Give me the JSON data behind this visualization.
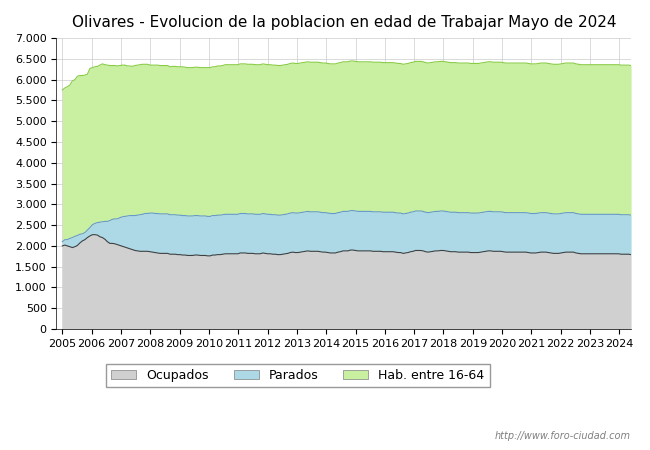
{
  "title": "Olivares - Evolucion de la poblacion en edad de Trabajar Mayo de 2024",
  "xlabel": "",
  "ylabel": "",
  "ylim": [
    0,
    7000
  ],
  "yticks": [
    0,
    500,
    1000,
    1500,
    2000,
    2500,
    3000,
    3500,
    4000,
    4500,
    5000,
    5500,
    6000,
    6500,
    7000
  ],
  "ytick_labels": [
    "0",
    "500",
    "1.000",
    "1.500",
    "2.000",
    "2.500",
    "3.000",
    "3.500",
    "4.000",
    "4.500",
    "5.000",
    "5.500",
    "6.000",
    "6.500",
    "7.000"
  ],
  "xlim": [
    2005,
    2024.4
  ],
  "xticks": [
    2005,
    2006,
    2007,
    2008,
    2009,
    2010,
    2011,
    2012,
    2013,
    2014,
    2015,
    2016,
    2017,
    2018,
    2019,
    2020,
    2021,
    2022,
    2023,
    2024
  ],
  "background_color": "#ffffff",
  "plot_bg_color": "#ffffff",
  "grid_color": "#cccccc",
  "url_text": "http://www.foro-ciudad.com",
  "legend_labels": [
    "Ocupados",
    "Parados",
    "Hab. entre 16-64"
  ],
  "color_ocupados": "#d0d0d0",
  "color_parados": "#add8e6",
  "color_hab1664": "#c8f0a0",
  "color_line_ocupados": "#404040",
  "color_line_parados": "#6699cc",
  "color_line_hab1664": "#88cc44",
  "hab1664": [
    5750,
    5800,
    5830,
    5870,
    5970,
    6000,
    6080,
    6100,
    6100,
    6110,
    6130,
    6270,
    6290,
    6310,
    6320,
    6350,
    6380,
    6360,
    6350,
    6340,
    6340,
    6340,
    6330,
    6340,
    6350,
    6350,
    6330,
    6330,
    6320,
    6340,
    6350,
    6360,
    6370,
    6370,
    6370,
    6350,
    6350,
    6350,
    6350,
    6340,
    6340,
    6340,
    6340,
    6310,
    6320,
    6320,
    6310,
    6310,
    6310,
    6300,
    6290,
    6290,
    6290,
    6300,
    6300,
    6290,
    6290,
    6290,
    6290,
    6290,
    6310,
    6310,
    6330,
    6330,
    6340,
    6360,
    6360,
    6360,
    6360,
    6360,
    6360,
    6380,
    6380,
    6380,
    6370,
    6370,
    6370,
    6360,
    6360,
    6360,
    6380,
    6370,
    6360,
    6360,
    6350,
    6350,
    6340,
    6340,
    6350,
    6360,
    6370,
    6390,
    6400,
    6390,
    6390,
    6400,
    6410,
    6420,
    6430,
    6420,
    6420,
    6420,
    6420,
    6410,
    6400,
    6400,
    6390,
    6380,
    6380,
    6380,
    6400,
    6410,
    6430,
    6430,
    6430,
    6450,
    6450,
    6440,
    6430,
    6430,
    6430,
    6430,
    6430,
    6430,
    6420,
    6420,
    6420,
    6420,
    6410,
    6410,
    6410,
    6410,
    6410,
    6400,
    6390,
    6390,
    6370,
    6380,
    6390,
    6410,
    6420,
    6440,
    6440,
    6440,
    6430,
    6410,
    6400,
    6410,
    6420,
    6430,
    6430,
    6440,
    6440,
    6430,
    6420,
    6410,
    6410,
    6410,
    6400,
    6400,
    6400,
    6400,
    6400,
    6390,
    6390,
    6390,
    6390,
    6400,
    6410,
    6420,
    6430,
    6430,
    6420,
    6420,
    6420,
    6420,
    6410,
    6400,
    6400,
    6400,
    6400,
    6400,
    6400,
    6400,
    6400,
    6400,
    6390,
    6380,
    6380,
    6380,
    6390,
    6400,
    6400,
    6400,
    6390,
    6380,
    6370,
    6370,
    6370,
    6380,
    6390,
    6400,
    6400,
    6400,
    6400,
    6380,
    6370,
    6360,
    6360,
    6360,
    6360,
    6360,
    6360,
    6360,
    6360,
    6360,
    6360,
    6360,
    6360,
    6360,
    6360,
    6360,
    6360,
    6350,
    6350,
    6350,
    6350,
    6340
  ],
  "parados": [
    2100,
    2150,
    2150,
    2180,
    2200,
    2230,
    2250,
    2280,
    2290,
    2320,
    2380,
    2440,
    2510,
    2540,
    2560,
    2570,
    2580,
    2590,
    2590,
    2610,
    2640,
    2650,
    2650,
    2680,
    2700,
    2710,
    2720,
    2730,
    2730,
    2730,
    2740,
    2750,
    2760,
    2780,
    2780,
    2790,
    2790,
    2780,
    2780,
    2770,
    2770,
    2770,
    2770,
    2750,
    2750,
    2750,
    2740,
    2740,
    2730,
    2730,
    2720,
    2720,
    2720,
    2730,
    2730,
    2720,
    2720,
    2720,
    2710,
    2710,
    2730,
    2730,
    2740,
    2740,
    2750,
    2760,
    2760,
    2760,
    2760,
    2760,
    2760,
    2780,
    2780,
    2780,
    2770,
    2770,
    2770,
    2760,
    2760,
    2760,
    2780,
    2770,
    2760,
    2760,
    2750,
    2750,
    2740,
    2740,
    2750,
    2760,
    2770,
    2790,
    2800,
    2790,
    2790,
    2800,
    2810,
    2820,
    2830,
    2820,
    2820,
    2820,
    2820,
    2810,
    2800,
    2800,
    2790,
    2780,
    2780,
    2780,
    2800,
    2810,
    2830,
    2830,
    2830,
    2850,
    2850,
    2840,
    2830,
    2830,
    2830,
    2830,
    2830,
    2830,
    2820,
    2820,
    2820,
    2820,
    2810,
    2810,
    2810,
    2810,
    2810,
    2800,
    2790,
    2790,
    2770,
    2780,
    2790,
    2810,
    2820,
    2840,
    2840,
    2840,
    2830,
    2810,
    2800,
    2810,
    2820,
    2830,
    2830,
    2840,
    2840,
    2830,
    2820,
    2810,
    2810,
    2810,
    2800,
    2800,
    2800,
    2800,
    2800,
    2790,
    2790,
    2790,
    2790,
    2800,
    2810,
    2820,
    2830,
    2830,
    2820,
    2820,
    2820,
    2820,
    2810,
    2800,
    2800,
    2800,
    2800,
    2800,
    2800,
    2800,
    2800,
    2800,
    2790,
    2780,
    2780,
    2780,
    2790,
    2800,
    2800,
    2800,
    2790,
    2780,
    2770,
    2770,
    2770,
    2780,
    2790,
    2800,
    2800,
    2800,
    2800,
    2780,
    2770,
    2760,
    2760,
    2760,
    2760,
    2760,
    2760,
    2760,
    2760,
    2760,
    2760,
    2760,
    2760,
    2760,
    2760,
    2760,
    2760,
    2750,
    2750,
    2750,
    2750,
    2740
  ],
  "ocupados": [
    2000,
    2020,
    2000,
    1980,
    1960,
    1980,
    2010,
    2070,
    2120,
    2150,
    2200,
    2240,
    2270,
    2270,
    2260,
    2220,
    2200,
    2160,
    2100,
    2060,
    2060,
    2050,
    2030,
    2010,
    1990,
    1970,
    1950,
    1930,
    1910,
    1890,
    1880,
    1870,
    1870,
    1870,
    1870,
    1860,
    1850,
    1840,
    1830,
    1820,
    1820,
    1820,
    1820,
    1800,
    1800,
    1800,
    1790,
    1790,
    1780,
    1780,
    1770,
    1770,
    1770,
    1780,
    1780,
    1770,
    1770,
    1770,
    1760,
    1760,
    1780,
    1780,
    1790,
    1790,
    1800,
    1810,
    1810,
    1810,
    1810,
    1810,
    1810,
    1830,
    1830,
    1830,
    1820,
    1820,
    1820,
    1810,
    1810,
    1810,
    1830,
    1820,
    1810,
    1810,
    1800,
    1800,
    1790,
    1790,
    1800,
    1810,
    1820,
    1840,
    1850,
    1840,
    1840,
    1850,
    1860,
    1870,
    1880,
    1870,
    1870,
    1870,
    1870,
    1860,
    1850,
    1850,
    1840,
    1830,
    1830,
    1830,
    1850,
    1860,
    1880,
    1880,
    1880,
    1900,
    1900,
    1890,
    1880,
    1880,
    1880,
    1880,
    1880,
    1880,
    1870,
    1870,
    1870,
    1870,
    1860,
    1860,
    1860,
    1860,
    1860,
    1850,
    1840,
    1840,
    1820,
    1830,
    1840,
    1860,
    1870,
    1890,
    1890,
    1890,
    1880,
    1860,
    1850,
    1860,
    1870,
    1880,
    1880,
    1890,
    1890,
    1880,
    1870,
    1860,
    1860,
    1860,
    1850,
    1850,
    1850,
    1850,
    1850,
    1840,
    1840,
    1840,
    1840,
    1850,
    1860,
    1870,
    1880,
    1880,
    1870,
    1870,
    1870,
    1870,
    1860,
    1850,
    1850,
    1850,
    1850,
    1850,
    1850,
    1850,
    1850,
    1850,
    1840,
    1830,
    1830,
    1830,
    1840,
    1850,
    1850,
    1850,
    1840,
    1830,
    1820,
    1820,
    1820,
    1830,
    1840,
    1850,
    1850,
    1850,
    1850,
    1830,
    1820,
    1810,
    1810,
    1810,
    1810,
    1810,
    1810,
    1810,
    1810,
    1810,
    1810,
    1810,
    1810,
    1810,
    1810,
    1810,
    1810,
    1800,
    1800,
    1800,
    1800,
    1790
  ],
  "n_points": 228,
  "start_year": 2005,
  "end_year": 2024.4,
  "title_fontsize": 11,
  "tick_fontsize": 8,
  "legend_fontsize": 9
}
